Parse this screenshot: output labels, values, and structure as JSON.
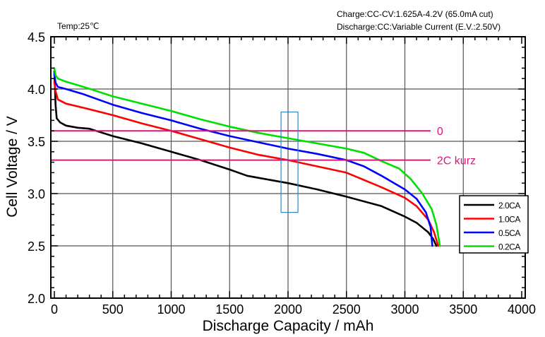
{
  "chart_data": {
    "type": "line",
    "title": "",
    "xlabel": "Discharge  Capacity  /  mAh",
    "ylabel": "Cell  Voltage  /  V",
    "xlim": [
      0,
      4000
    ],
    "ylim": [
      2.0,
      4.5
    ],
    "x_ticks": [
      0,
      500,
      1000,
      1500,
      2000,
      2500,
      3000,
      3500,
      4000
    ],
    "x_tick_labels": [
      "0",
      "500",
      "1000",
      "1500",
      "2000",
      "2500",
      "3000",
      "3500",
      "4000"
    ],
    "y_ticks": [
      2.0,
      2.5,
      3.0,
      3.5,
      4.0,
      4.5
    ],
    "y_tick_labels": [
      "2.0",
      "2.5",
      "3.0",
      "3.5",
      "4.0",
      "4.5"
    ],
    "grid": true,
    "legend_position": "bottom-right",
    "notes": {
      "temperature": "Temp:25℃",
      "charge": "Charge:CC-CV:1.625A-4.2V (65.0mA cut)",
      "discharge": "Discharge:CC:Variable Current (E.V.:2.50V)"
    },
    "series": [
      {
        "name": "2.0CA",
        "color": "#000000",
        "points": [
          [
            0,
            4.17
          ],
          [
            10,
            3.85
          ],
          [
            20,
            3.72
          ],
          [
            50,
            3.68
          ],
          [
            100,
            3.65
          ],
          [
            200,
            3.63
          ],
          [
            300,
            3.62
          ],
          [
            500,
            3.55
          ],
          [
            750,
            3.48
          ],
          [
            1000,
            3.4
          ],
          [
            1250,
            3.32
          ],
          [
            1500,
            3.23
          ],
          [
            1650,
            3.17
          ],
          [
            1750,
            3.15
          ],
          [
            2000,
            3.1
          ],
          [
            2250,
            3.04
          ],
          [
            2500,
            2.97
          ],
          [
            2800,
            2.88
          ],
          [
            3000,
            2.78
          ],
          [
            3100,
            2.72
          ],
          [
            3200,
            2.63
          ],
          [
            3240,
            2.57
          ],
          [
            3270,
            2.5
          ]
        ]
      },
      {
        "name": "1.0CA",
        "color": "#ff0000",
        "points": [
          [
            0,
            4.07
          ],
          [
            10,
            3.98
          ],
          [
            30,
            3.9
          ],
          [
            100,
            3.86
          ],
          [
            250,
            3.82
          ],
          [
            500,
            3.75
          ],
          [
            750,
            3.67
          ],
          [
            1000,
            3.6
          ],
          [
            1250,
            3.52
          ],
          [
            1500,
            3.44
          ],
          [
            1750,
            3.37
          ],
          [
            2000,
            3.32
          ],
          [
            2250,
            3.26
          ],
          [
            2500,
            3.2
          ],
          [
            2800,
            3.06
          ],
          [
            3000,
            2.96
          ],
          [
            3100,
            2.88
          ],
          [
            3200,
            2.75
          ],
          [
            3250,
            2.63
          ],
          [
            3285,
            2.5
          ]
        ]
      },
      {
        "name": "0.5CA",
        "color": "#0000ff",
        "points": [
          [
            0,
            4.14
          ],
          [
            10,
            4.06
          ],
          [
            30,
            4.02
          ],
          [
            100,
            4.0
          ],
          [
            250,
            3.95
          ],
          [
            500,
            3.85
          ],
          [
            750,
            3.77
          ],
          [
            1000,
            3.7
          ],
          [
            1250,
            3.62
          ],
          [
            1500,
            3.55
          ],
          [
            1750,
            3.49
          ],
          [
            2000,
            3.43
          ],
          [
            2250,
            3.38
          ],
          [
            2500,
            3.32
          ],
          [
            2650,
            3.26
          ],
          [
            2800,
            3.17
          ],
          [
            3000,
            3.04
          ],
          [
            3100,
            2.95
          ],
          [
            3180,
            2.82
          ],
          [
            3220,
            2.68
          ],
          [
            3235,
            2.5
          ]
        ]
      },
      {
        "name": "0.2CA",
        "color": "#00e000",
        "points": [
          [
            0,
            4.2
          ],
          [
            10,
            4.13
          ],
          [
            30,
            4.1
          ],
          [
            100,
            4.07
          ],
          [
            250,
            4.02
          ],
          [
            500,
            3.93
          ],
          [
            750,
            3.86
          ],
          [
            1000,
            3.79
          ],
          [
            1250,
            3.71
          ],
          [
            1500,
            3.64
          ],
          [
            1750,
            3.58
          ],
          [
            2000,
            3.53
          ],
          [
            2250,
            3.48
          ],
          [
            2500,
            3.43
          ],
          [
            2650,
            3.39
          ],
          [
            2800,
            3.31
          ],
          [
            2950,
            3.24
          ],
          [
            3050,
            3.14
          ],
          [
            3150,
            3.0
          ],
          [
            3230,
            2.85
          ],
          [
            3270,
            2.7
          ],
          [
            3300,
            2.5
          ]
        ]
      }
    ],
    "annotations": {
      "hlines": [
        {
          "label": "0",
          "y": 3.6,
          "x_end": 3220,
          "color": "#d6197e"
        },
        {
          "label": "2C kurz",
          "y": 3.32,
          "x_end": 3220,
          "color": "#d6197e"
        }
      ],
      "rect": {
        "x": [
          1940,
          2085
        ],
        "y": [
          2.82,
          3.78
        ],
        "color": "#2e86c1"
      }
    }
  }
}
